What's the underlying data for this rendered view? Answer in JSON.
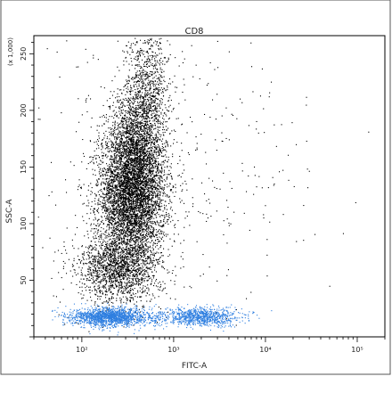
{
  "chart_data": {
    "type": "scatter",
    "title": "CD8",
    "xlabel": "FITC-A",
    "ylabel": "SSC-A",
    "y_multiplier_label": "(x 1,000)",
    "x_scale": "log",
    "x_range": [
      30,
      200000
    ],
    "y_range": [
      0,
      266
    ],
    "x_ticks": [
      {
        "value": 100,
        "label": "10²"
      },
      {
        "value": 1000,
        "label": "10³"
      },
      {
        "value": 10000,
        "label": "10⁴"
      },
      {
        "value": 100000,
        "label": "10⁵"
      }
    ],
    "y_ticks": [
      {
        "value": 50,
        "label": "50"
      },
      {
        "value": 100,
        "label": "100"
      },
      {
        "value": 150,
        "label": "150"
      },
      {
        "value": 200,
        "label": "200"
      },
      {
        "value": 250,
        "label": "250"
      }
    ],
    "grid": false,
    "series": [
      {
        "color": "#000000",
        "population": "main",
        "density_centers": [
          {
            "x": 350,
            "y": 125,
            "sx_log": 0.18,
            "sy": 30,
            "weight": 0.55
          },
          {
            "x": 400,
            "y": 175,
            "sx_log": 0.15,
            "sy": 25,
            "weight": 0.15
          },
          {
            "x": 520,
            "y": 225,
            "sx_log": 0.12,
            "sy": 25,
            "weight": 0.08
          },
          {
            "x": 250,
            "y": 60,
            "sx_log": 0.22,
            "sy": 15,
            "weight": 0.17
          },
          {
            "x": 800,
            "y": 150,
            "sx_log": 0.8,
            "sy": 70,
            "weight": 0.05
          }
        ]
      },
      {
        "color": "#2f7fe0",
        "population": "low-SSC",
        "density_centers": [
          {
            "x": 200,
            "y": 18,
            "sx_log": 0.2,
            "sy": 4,
            "weight": 0.6
          },
          {
            "x": 2000,
            "y": 18,
            "sx_log": 0.2,
            "sy": 4,
            "weight": 0.3
          },
          {
            "x": 700,
            "y": 18,
            "sx_log": 0.45,
            "sy": 4,
            "weight": 0.1
          }
        ]
      }
    ]
  }
}
